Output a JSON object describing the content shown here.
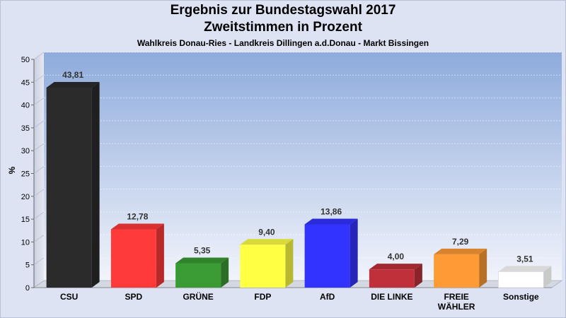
{
  "chart_data": {
    "type": "bar",
    "title": "Ergebnis zur Bundestagswahl 2017",
    "subtitle": "Zweitstimmen in Prozent",
    "caption": "Wahlkreis Donau-Ries - Landkreis Dillingen a.d.Donau - Markt Bissingen",
    "ylabel": "%",
    "ylim": [
      0,
      50
    ],
    "yticks": [
      0,
      5,
      10,
      15,
      20,
      25,
      30,
      35,
      40,
      45,
      50
    ],
    "grid": true,
    "categories": [
      "CSU",
      "SPD",
      "GRÜNE",
      "FDP",
      "AfD",
      "DIE LINKE",
      "FREIE WÄHLER",
      "Sonstige"
    ],
    "category_lines": [
      [
        "CSU"
      ],
      [
        "SPD"
      ],
      [
        "GRÜNE"
      ],
      [
        "FDP"
      ],
      [
        "AfD"
      ],
      [
        "DIE LINKE"
      ],
      [
        "FREIE",
        "WÄHLER"
      ],
      [
        "Sonstige"
      ]
    ],
    "values": [
      43.81,
      12.78,
      5.35,
      9.4,
      13.86,
      4.0,
      7.29,
      3.51
    ],
    "value_labels": [
      "43,81",
      "12,78",
      "5,35",
      "9,40",
      "13,86",
      "4,00",
      "7,29",
      "3,51"
    ],
    "colors": [
      "#2b2b2b",
      "#ff3a3a",
      "#3a9a33",
      "#ffff44",
      "#3333ff",
      "#c0303a",
      "#ff9b35",
      "#ffffff"
    ]
  }
}
